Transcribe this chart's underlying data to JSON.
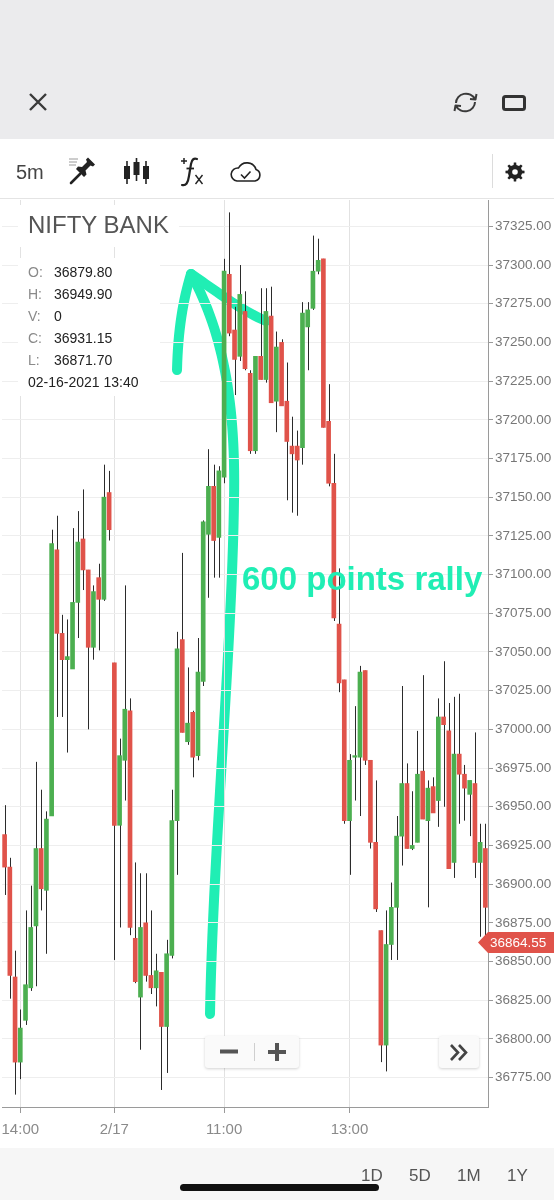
{
  "chart_data": {
    "type": "candlestick",
    "title": "NIFTY BANK",
    "annotations": [
      "O: 36879.80",
      "H: 36949.90",
      "V: 0",
      "C: 36931.15",
      "L: 36871.70",
      "02-16-2021 13:40",
      "600 points rally",
      "36864.55",
      "5m",
      "1D",
      "5D",
      "1M",
      "1Y"
    ],
    "categories": [
      null,
      null,
      null,
      "14:00",
      null,
      null,
      null,
      null,
      null,
      null,
      null,
      null,
      null,
      null,
      null,
      null,
      null,
      null,
      null,
      null,
      null,
      "2/17",
      null,
      null,
      null,
      null,
      null,
      null,
      null,
      null,
      null,
      null,
      null,
      null,
      null,
      null,
      null,
      null,
      null,
      null,
      null,
      null,
      "11:00",
      null,
      null,
      null,
      null,
      null,
      null,
      null,
      null,
      null,
      null,
      null,
      null,
      null,
      null,
      null,
      null,
      null,
      null,
      null,
      null,
      null,
      null,
      null,
      "13:00",
      null,
      null,
      null,
      null,
      null,
      null,
      null,
      null,
      null,
      null,
      null,
      null,
      null,
      null,
      null,
      null,
      null,
      null,
      null,
      null,
      null,
      null,
      null,
      null,
      null,
      null
    ],
    "ohlc": [
      [
        36932,
        36951,
        36893,
        36911
      ],
      [
        36911,
        36917,
        36826,
        36841
      ],
      [
        36840,
        36857,
        36764,
        36785
      ],
      [
        36785,
        36819,
        36774,
        36807
      ],
      [
        36812,
        36883,
        36809,
        36835
      ],
      [
        36833,
        36899,
        36831,
        36872
      ],
      [
        36873,
        36979,
        36834,
        36923
      ],
      [
        36923,
        36961,
        36883,
        36897
      ],
      [
        36896,
        36947,
        36855,
        36942
      ],
      [
        36944,
        37129,
        36944,
        37120
      ],
      [
        37116,
        37138,
        37008,
        37062
      ],
      [
        37062,
        37074,
        37008,
        37045
      ],
      [
        37045,
        37071,
        36985,
        37047
      ],
      [
        37039,
        37130,
        37039,
        37082
      ],
      [
        37082,
        37141,
        37059,
        37121
      ],
      [
        37123,
        37155,
        37090,
        37103
      ],
      [
        37103,
        37103,
        37000,
        37053
      ],
      [
        37053,
        37093,
        37045,
        37089
      ],
      [
        37098,
        37107,
        37051,
        37084
      ],
      [
        37084,
        37171,
        37083,
        37150
      ],
      [
        37153,
        37167,
        37122,
        37129
      ],
      [
        37043,
        37043,
        36851,
        36938
      ],
      [
        36938,
        36994,
        36872,
        36983
      ],
      [
        36980,
        37093,
        36954,
        37013
      ],
      [
        37012,
        37020,
        36867,
        36872
      ],
      [
        36865,
        36914,
        36836,
        36837
      ],
      [
        36827,
        36907,
        36793,
        36872
      ],
      [
        36875,
        36907,
        36837,
        36841
      ],
      [
        36841,
        36883,
        36829,
        36833
      ],
      [
        36833,
        36855,
        36821,
        36844
      ],
      [
        36843,
        36843,
        36767,
        36808
      ],
      [
        36808,
        36864,
        36778,
        36855
      ],
      [
        36854,
        36961,
        36852,
        36941
      ],
      [
        36941,
        37063,
        36906,
        37052
      ],
      [
        37058,
        37114,
        36998,
        36998
      ],
      [
        36992,
        37040,
        36990,
        37004
      ],
      [
        37011,
        37012,
        36969,
        36982
      ],
      [
        36983,
        37059,
        36980,
        37037
      ],
      [
        37031,
        37135,
        37028,
        37134
      ],
      [
        37126,
        37181,
        37085,
        37157
      ],
      [
        37157,
        37171,
        37098,
        37122
      ],
      [
        37124,
        37170,
        37098,
        37167
      ],
      [
        37163,
        37304,
        37159,
        37296
      ],
      [
        37294,
        37334,
        37254,
        37256
      ],
      [
        37258,
        37273,
        37216,
        37239
      ],
      [
        37241,
        37300,
        37238,
        37281
      ],
      [
        37270,
        37283,
        37232,
        37233
      ],
      [
        37230,
        37232,
        37178,
        37180
      ],
      [
        37180,
        37241,
        37178,
        37241
      ],
      [
        37241,
        37285,
        37226,
        37226
      ],
      [
        37226,
        37285,
        37224,
        37270
      ],
      [
        37267,
        37286,
        37211,
        37211
      ],
      [
        37212,
        37257,
        37192,
        37247
      ],
      [
        37250,
        37252,
        37209,
        37209
      ],
      [
        37212,
        37237,
        37148,
        37186
      ],
      [
        37183,
        37202,
        37140,
        37178
      ],
      [
        37183,
        37193,
        37138,
        37174
      ],
      [
        37182,
        37276,
        37171,
        37269
      ],
      [
        37260,
        37276,
        37232,
        37271
      ],
      [
        37272,
        37319,
        37271,
        37296
      ],
      [
        37296,
        37317,
        37294,
        37303
      ],
      [
        37304,
        37304,
        37195,
        37195
      ],
      [
        37199,
        37223,
        37157,
        37159
      ],
      [
        37159,
        37178,
        37070,
        37072
      ],
      [
        37068,
        37104,
        37024,
        37030
      ],
      [
        37032,
        37032,
        36939,
        36941
      ],
      [
        36941,
        36984,
        36906,
        36980
      ],
      [
        36982,
        37015,
        36954,
        36983
      ],
      [
        36982,
        37041,
        36944,
        37037
      ],
      [
        37038,
        37038,
        36977,
        36980
      ],
      [
        36980,
        36980,
        36923,
        36927
      ],
      [
        36927,
        36967,
        36882,
        36884
      ],
      [
        36870,
        36870,
        36785,
        36796
      ],
      [
        36796,
        36883,
        36779,
        36861
      ],
      [
        36861,
        36901,
        36851,
        36885
      ],
      [
        36885,
        36944,
        36851,
        36931
      ],
      [
        36931,
        37028,
        36912,
        36965
      ],
      [
        36965,
        36978,
        36923,
        36923
      ],
      [
        36923,
        36960,
        36922,
        36925
      ],
      [
        36927,
        36999,
        36927,
        36971
      ],
      [
        36973,
        37035,
        36942,
        36942
      ],
      [
        36941,
        36967,
        36885,
        36962
      ],
      [
        36963,
        36969,
        36946,
        36946
      ],
      [
        36954,
        37020,
        36937,
        37008
      ],
      [
        37008,
        37044,
        36950,
        37003
      ],
      [
        36999,
        37017,
        36910,
        36910
      ],
      [
        36914,
        37021,
        36904,
        36984
      ],
      [
        36984,
        37023,
        36939,
        36971
      ],
      [
        36971,
        36977,
        36941,
        36962
      ],
      [
        36958,
        36967,
        36931,
        36967
      ],
      [
        36965,
        36998,
        36904,
        36914
      ],
      [
        36914,
        36939,
        36866,
        36927
      ],
      [
        36923,
        36939,
        36866,
        36885
      ]
    ],
    "colors": [
      "#e0534a",
      "#e0534a",
      "#e0534a",
      "#4caf50",
      "#4caf50",
      "#4caf50",
      "#4caf50",
      "#e0534a",
      "#4caf50",
      "#4caf50",
      "#e0534a",
      "#e0534a",
      "#4caf50",
      "#4caf50",
      "#4caf50",
      "#e0534a",
      "#e0534a",
      "#4caf50",
      "#e0534a",
      "#4caf50",
      "#e0534a",
      "#e0534a",
      "#4caf50",
      "#4caf50",
      "#e0534a",
      "#e0534a",
      "#4caf50",
      "#e0534a",
      "#e0534a",
      "#4caf50",
      "#e0534a",
      "#4caf50",
      "#4caf50",
      "#4caf50",
      "#e0534a",
      "#4caf50",
      "#e0534a",
      "#4caf50",
      "#4caf50",
      "#4caf50",
      "#e0534a",
      "#4caf50",
      "#4caf50",
      "#e0534a",
      "#e0534a",
      "#4caf50",
      "#e0534a",
      "#e0534a",
      "#4caf50",
      "#e0534a",
      "#4caf50",
      "#e0534a",
      "#4caf50",
      "#e0534a",
      "#e0534a",
      "#e0534a",
      "#e0534a",
      "#4caf50",
      "#4caf50",
      "#4caf50",
      "#4caf50",
      "#e0534a",
      "#e0534a",
      "#e0534a",
      "#e0534a",
      "#e0534a",
      "#4caf50",
      "#4caf50",
      "#4caf50",
      "#e0534a",
      "#e0534a",
      "#e0534a",
      "#e0534a",
      "#4caf50",
      "#4caf50",
      "#4caf50",
      "#4caf50",
      "#e0534a",
      "#4caf50",
      "#4caf50",
      "#e0534a",
      "#4caf50",
      "#e0534a",
      "#4caf50",
      "#e0534a",
      "#e0534a",
      "#4caf50",
      "#e0534a",
      "#e0534a",
      "#4caf50",
      "#e0534a",
      "#4caf50",
      "#e0534a"
    ],
    "ylim": [
      36756,
      37342
    ],
    "yticks": [
      {
        "value": 36775,
        "label": "36775.00"
      },
      {
        "value": 36800,
        "label": "36800.00"
      },
      {
        "value": 36825,
        "label": "36825.00"
      },
      {
        "value": 36850,
        "label": "36850.00"
      },
      {
        "value": 36875,
        "label": "36875.00"
      },
      {
        "value": 36900,
        "label": "36900.00"
      },
      {
        "value": 36925,
        "label": "36925.00"
      },
      {
        "value": 36950,
        "label": "36950.00"
      },
      {
        "value": 36975,
        "label": "36975.00"
      },
      {
        "value": 37000,
        "label": "37000.00"
      },
      {
        "value": 37025,
        "label": "37025.00"
      },
      {
        "value": 37050,
        "label": "37050.00"
      },
      {
        "value": 37075,
        "label": "37075.00"
      },
      {
        "value": 37100,
        "label": "37100.00"
      },
      {
        "value": 37125,
        "label": "37125.00"
      },
      {
        "value": 37150,
        "label": "37150.00"
      },
      {
        "value": 37175,
        "label": "37175.00"
      },
      {
        "value": 37200,
        "label": "37200.00"
      },
      {
        "value": 37225,
        "label": "37225.00"
      },
      {
        "value": 37250,
        "label": "37250.00"
      },
      {
        "value": 37275,
        "label": "37275.00"
      },
      {
        "value": 37300,
        "label": "37300.00"
      },
      {
        "value": 37325,
        "label": "37325.00"
      }
    ],
    "grid": true
  }
}
